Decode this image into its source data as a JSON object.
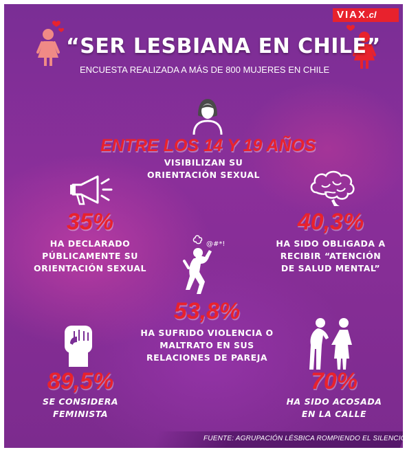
{
  "brand": {
    "logo_main": "VIAX",
    "logo_suffix": ".cl"
  },
  "header": {
    "title": "“SER LESBIANA EN CHILE”",
    "subtitle": "ENCUESTA REALIZADA A MÁS DE 800 MUJERES EN CHILE"
  },
  "stats": {
    "age": {
      "headline": "ENTRE LOS 14 Y 19 AÑOS",
      "line1": "VISIBILIZAN SU",
      "line2": "ORIENTACIÓN SEXUAL"
    },
    "public": {
      "value": "35%",
      "line1": "HA DECLARADO",
      "line2": "PÚBLICAMENTE SU",
      "line3": "ORIENTACIÓN SEXUAL"
    },
    "mental": {
      "value": "40,3%",
      "line1": "HA SIDO OBLIGADA A",
      "line2": "RECIBIR “ATENCIÓN",
      "line3": "DE SALUD MENTAL”"
    },
    "violence": {
      "value": "53,8%",
      "line1": "HA SUFRIDO VIOLENCIA O",
      "line2": "MALTRATO EN SUS",
      "line3": "RELACIONES DE PAREJA"
    },
    "feminist": {
      "value": "89,5%",
      "line1": "SE CONSIDERA",
      "line2": "FEMINISTA"
    },
    "harassed": {
      "value": "70%",
      "line1": "HA SIDO ACOSADA",
      "line2": "EN LA CALLE"
    }
  },
  "icon_text": {
    "swear": "@#*!"
  },
  "footer": {
    "source": "FUENTE:  AGRUPACIÓN LÉSBICA ROMPIENDO EL SILENCIO"
  },
  "colors": {
    "accent_red": "#e8222d",
    "background_purple": "#7a2e95",
    "icon_pink": "#f08a86"
  }
}
